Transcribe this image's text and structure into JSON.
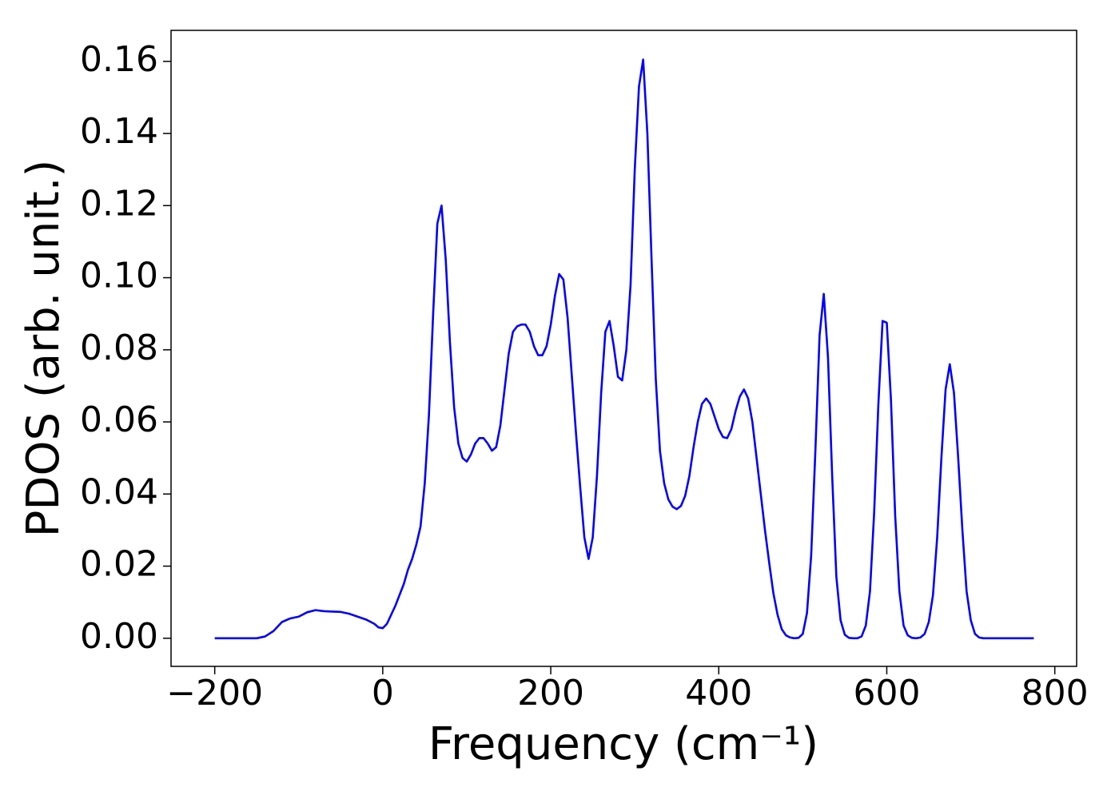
{
  "chart_data": {
    "type": "line",
    "x_label": "Frequency (cm⁻¹)",
    "y_label": "PDOS (arb. unit.)",
    "xlim": [
      -252,
      826
    ],
    "ylim": [
      -0.0078,
      0.1686
    ],
    "xticks": [
      {
        "value": -200,
        "label": "−200"
      },
      0,
      200,
      400,
      600,
      800
    ],
    "yticks": [
      {
        "value": 0,
        "label": "0.00"
      },
      {
        "value": 0.02,
        "label": "0.02"
      },
      {
        "value": 0.04,
        "label": "0.04"
      },
      {
        "value": 0.06,
        "label": "0.06"
      },
      {
        "value": 0.08,
        "label": "0.08"
      },
      {
        "value": 0.1,
        "label": "0.10"
      },
      {
        "value": 0.12,
        "label": "0.12"
      },
      {
        "value": 0.14,
        "label": "0.14"
      },
      {
        "value": 0.16,
        "label": "0.16"
      }
    ],
    "grid": false,
    "x": [
      -200,
      -150,
      -140,
      -130,
      -120,
      -110,
      -100,
      -90,
      -80,
      -70,
      -60,
      -50,
      -40,
      -30,
      -20,
      -10,
      -5,
      0,
      5,
      10,
      15,
      20,
      25,
      30,
      35,
      40,
      45,
      50,
      55,
      60,
      65,
      70,
      75,
      80,
      85,
      90,
      95,
      100,
      105,
      110,
      115,
      120,
      125,
      130,
      135,
      140,
      145,
      150,
      155,
      160,
      165,
      170,
      175,
      180,
      185,
      190,
      195,
      200,
      205,
      210,
      215,
      220,
      225,
      230,
      235,
      240,
      245,
      250,
      255,
      260,
      265,
      270,
      275,
      280,
      285,
      290,
      295,
      300,
      305,
      310,
      315,
      320,
      325,
      330,
      335,
      340,
      345,
      350,
      355,
      360,
      365,
      370,
      375,
      380,
      385,
      390,
      395,
      400,
      405,
      410,
      415,
      420,
      425,
      430,
      435,
      440,
      445,
      450,
      455,
      460,
      465,
      470,
      475,
      480,
      485,
      490,
      495,
      500,
      505,
      510,
      515,
      520,
      525,
      530,
      535,
      540,
      545,
      550,
      555,
      560,
      565,
      570,
      575,
      580,
      585,
      590,
      595,
      600,
      605,
      610,
      615,
      620,
      625,
      630,
      635,
      640,
      645,
      650,
      655,
      660,
      665,
      670,
      675,
      680,
      685,
      690,
      695,
      700,
      705,
      710,
      715,
      775
    ],
    "series": [
      {
        "name": "PDOS",
        "color": "#0000ff",
        "values": [
          0,
          0,
          0.0005,
          0.002,
          0.0045,
          0.0055,
          0.006,
          0.0072,
          0.0078,
          0.0075,
          0.0074,
          0.0073,
          0.0068,
          0.006,
          0.0052,
          0.004,
          0.003,
          0.0028,
          0.004,
          0.0065,
          0.009,
          0.012,
          0.015,
          0.019,
          0.022,
          0.026,
          0.031,
          0.043,
          0.062,
          0.09,
          0.115,
          0.12,
          0.105,
          0.082,
          0.064,
          0.054,
          0.05,
          0.049,
          0.051,
          0.054,
          0.0555,
          0.0555,
          0.054,
          0.052,
          0.053,
          0.059,
          0.069,
          0.079,
          0.085,
          0.0865,
          0.087,
          0.087,
          0.085,
          0.081,
          0.0785,
          0.0785,
          0.081,
          0.087,
          0.095,
          0.101,
          0.0995,
          0.089,
          0.073,
          0.057,
          0.042,
          0.028,
          0.022,
          0.028,
          0.045,
          0.068,
          0.085,
          0.088,
          0.081,
          0.0725,
          0.0715,
          0.08,
          0.098,
          0.13,
          0.153,
          0.1605,
          0.14,
          0.105,
          0.072,
          0.052,
          0.043,
          0.0385,
          0.0365,
          0.0358,
          0.0367,
          0.0395,
          0.045,
          0.053,
          0.06,
          0.065,
          0.0665,
          0.065,
          0.0615,
          0.058,
          0.0558,
          0.0555,
          0.058,
          0.063,
          0.067,
          0.069,
          0.0665,
          0.06,
          0.05,
          0.04,
          0.03,
          0.021,
          0.0125,
          0.0065,
          0.0025,
          0.0008,
          0.0002,
          0,
          0.0001,
          0.0012,
          0.007,
          0.023,
          0.052,
          0.084,
          0.0955,
          0.078,
          0.045,
          0.017,
          0.005,
          0.001,
          0.0001,
          0,
          0,
          0.0005,
          0.0035,
          0.013,
          0.035,
          0.065,
          0.088,
          0.0875,
          0.066,
          0.034,
          0.013,
          0.0035,
          0.0008,
          0.0001,
          0,
          0.0002,
          0.0012,
          0.0045,
          0.012,
          0.028,
          0.05,
          0.069,
          0.076,
          0.068,
          0.05,
          0.03,
          0.013,
          0.005,
          0.0012,
          0.0002,
          0,
          0
        ]
      }
    ]
  }
}
